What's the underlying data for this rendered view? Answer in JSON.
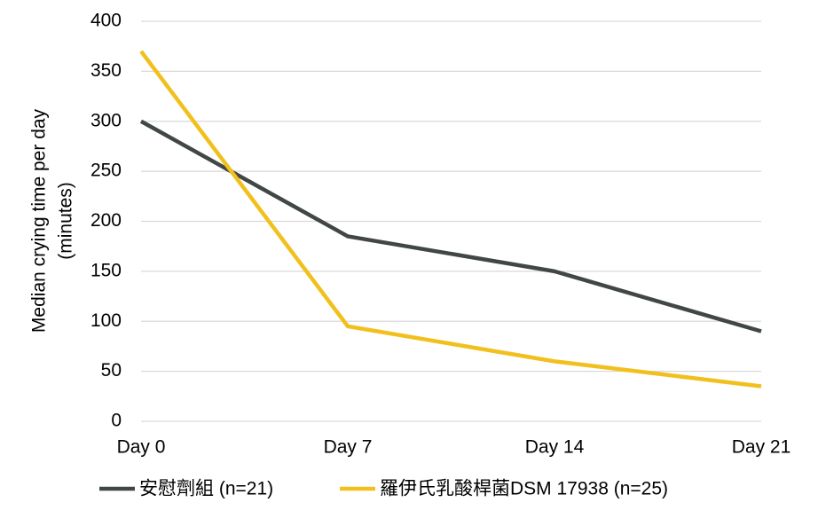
{
  "chart_data": {
    "type": "line",
    "y_label": [
      "Median crying time per day",
      "(minutes)"
    ],
    "categories": [
      "Day 0",
      "Day 7",
      "Day 14",
      "Day 21"
    ],
    "series": [
      {
        "name": "安慰劑組 (n=21)",
        "color": "#414745",
        "values": [
          300,
          185,
          150,
          90
        ]
      },
      {
        "name": "羅伊氏乳酸桿菌DSM 17938 (n=25)",
        "color": "#f2c01e",
        "values": [
          370,
          95,
          60,
          35
        ]
      }
    ],
    "ylim": [
      0,
      400
    ],
    "yticks": [
      0,
      50,
      100,
      150,
      200,
      250,
      300,
      350,
      400
    ],
    "grid": true,
    "legend": "bottom"
  }
}
